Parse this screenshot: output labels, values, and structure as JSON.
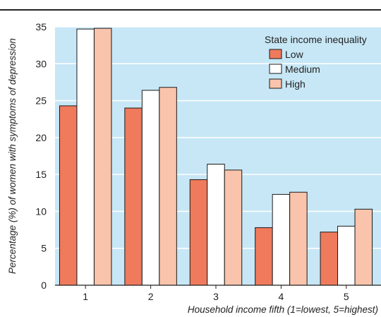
{
  "chart_data": {
    "type": "bar",
    "title": "",
    "xlabel": "Household income fifth (1=lowest, 5=highest)",
    "ylabel": "Percentage (%) of women with symptoms of depression",
    "categories": [
      "1",
      "2",
      "3",
      "4",
      "5"
    ],
    "ylim": [
      0,
      35
    ],
    "yticks": [
      0,
      5,
      10,
      15,
      20,
      25,
      30,
      35
    ],
    "grid": "horizontal",
    "legend": {
      "title": "State income inequality",
      "placement": "top-right"
    },
    "series": [
      {
        "name": "Low",
        "color": "#ef7a5c",
        "values": [
          24.3,
          24.0,
          14.3,
          7.8,
          7.2
        ]
      },
      {
        "name": "Medium",
        "color": "#ffffff",
        "values": [
          34.7,
          26.4,
          16.4,
          12.3,
          8.0
        ]
      },
      {
        "name": "High",
        "color": "#f9c4ab",
        "values": [
          34.8,
          26.8,
          15.6,
          12.6,
          10.3
        ]
      }
    ],
    "colors": {
      "plot_background": "#c7e7f6",
      "gridline": "#ffffff",
      "bar_stroke": "#1a1a1a"
    }
  }
}
